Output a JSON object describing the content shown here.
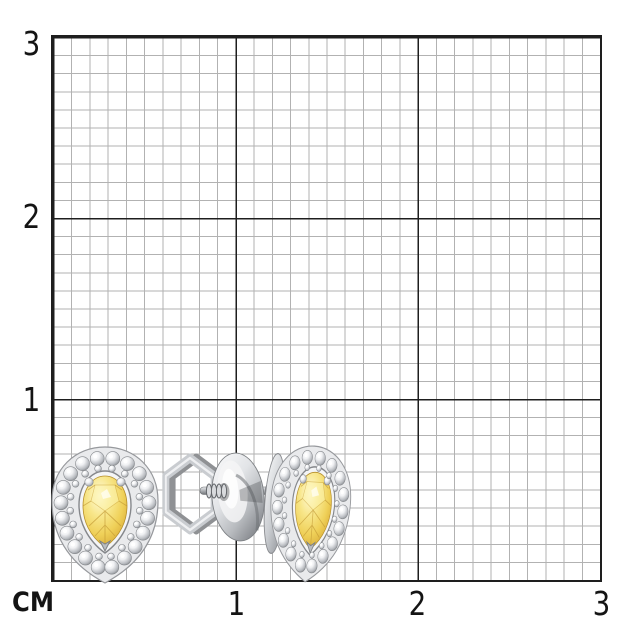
{
  "image": {
    "type": "jewelry product photo on centimeter measurement grid",
    "background": "#ffffff"
  },
  "ruler": {
    "unit_label": "СМ",
    "x_ticks": [
      "1",
      "2",
      "3"
    ],
    "y_ticks": [
      "3",
      "2",
      "1"
    ],
    "major_line_color": "#1e1e1e",
    "minor_line_color": "#b2b2b2",
    "label_color": "#141414"
  },
  "subject": {
    "left_view": "stud earring front view: pear-cut yellow stone in round-diamond halo",
    "center_view": "screw-back fastening side view: hex wire nut, threaded post, round back disc",
    "right_view": "second stud earring, three-quarter back view",
    "stone_color": "#f2d763",
    "metal_color": "#cdd0d3",
    "pave_color": "#e9eaec"
  }
}
